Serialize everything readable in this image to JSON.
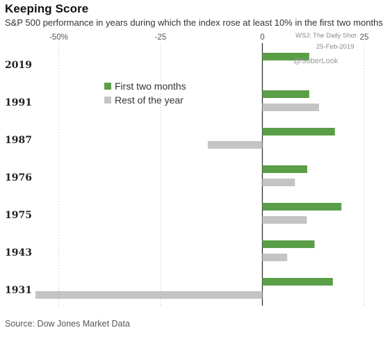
{
  "chart_data": {
    "type": "bar",
    "orientation": "horizontal",
    "title": "Keeping Score",
    "subtitle": "S&P 500 performance in years during which the index rose at least 10% in the first two months",
    "source": "Source: Dow Jones Market Data",
    "categories": [
      "2019",
      "1991",
      "1987",
      "1976",
      "1975",
      "1943",
      "1931"
    ],
    "series": [
      {
        "name": "First two months",
        "color": "#5a9e47",
        "values": [
          11.5,
          11.5,
          17.8,
          11.0,
          19.4,
          12.8,
          17.3
        ]
      },
      {
        "name": "Rest of the year",
        "color": "#c4c4c4",
        "values": [
          null,
          13.9,
          -13.4,
          8.0,
          10.9,
          6.1,
          -55.7
        ]
      }
    ],
    "xlim": [
      -55.7,
      25
    ],
    "x_ticks": [
      -50,
      -25,
      0,
      25
    ],
    "x_tick_labels": [
      "-50%",
      "-25",
      "0",
      "25"
    ],
    "grid": "vertical",
    "legend_position": "upper-center"
  },
  "credits": {
    "line1": "WSJ: The Daily Shot",
    "line2": "25-Feb-2019",
    "handle": "@SoberLook"
  }
}
